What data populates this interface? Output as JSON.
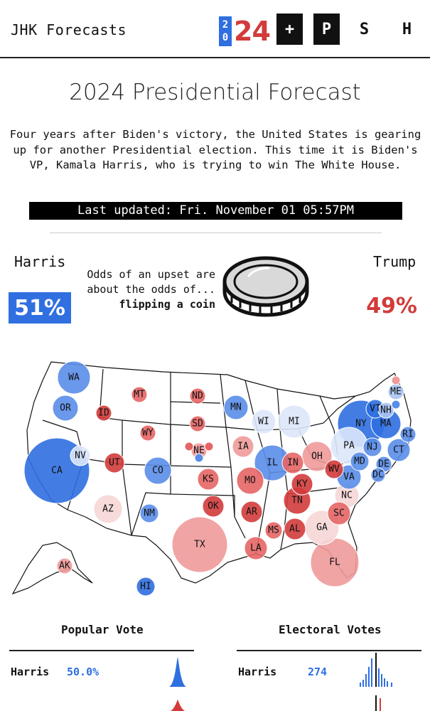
{
  "header": {
    "brand": "JHK Forecasts",
    "year_digits": [
      "2",
      "0"
    ],
    "year_suffix": "24",
    "nav": [
      "+",
      "P",
      "S",
      "H"
    ]
  },
  "title": "2024 Presidential Forecast",
  "intro": "Four years after Biden's victory, the United States is gearing up for another Presidential election. This time it is Biden's VP, Kamala Harris, who is trying to win The White House.",
  "last_updated": "Last updated: Fri. November 01 05:57PM",
  "odds": {
    "harris_name": "Harris",
    "harris_pct": "51%",
    "trump_name": "Trump",
    "trump_pct": "49%",
    "text_line1": "Odds of an upset are",
    "text_line2": "about the odds of...",
    "text_line3": "flipping a coin",
    "image": "coin-icon"
  },
  "colors": {
    "dem_strong": "#2f6fe0",
    "dem_lean": "#5a8de8",
    "dem_tilt": "#a8c4f2",
    "tossup_dem": "#dde7f9",
    "tossup_rep": "#f6d6d6",
    "rep_tilt": "#ef9a9a",
    "rep_lean": "#e56565",
    "rep_strong": "#d23b3b"
  },
  "states": [
    {
      "abbr": "WA",
      "color": "dem_lean"
    },
    {
      "abbr": "OR",
      "color": "dem_lean"
    },
    {
      "abbr": "CA",
      "color": "dem_strong"
    },
    {
      "abbr": "NV",
      "color": "tossup_dem"
    },
    {
      "abbr": "ID",
      "color": "rep_strong"
    },
    {
      "abbr": "MT",
      "color": "rep_lean"
    },
    {
      "abbr": "WY",
      "color": "rep_lean"
    },
    {
      "abbr": "UT",
      "color": "rep_strong"
    },
    {
      "abbr": "AZ",
      "color": "tossup_rep"
    },
    {
      "abbr": "CO",
      "color": "dem_lean"
    },
    {
      "abbr": "NM",
      "color": "dem_lean"
    },
    {
      "abbr": "ND",
      "color": "rep_lean"
    },
    {
      "abbr": "SD",
      "color": "rep_lean"
    },
    {
      "abbr": "NE",
      "color": "rep_tilt"
    },
    {
      "abbr": "KS",
      "color": "rep_lean"
    },
    {
      "abbr": "OK",
      "color": "rep_strong"
    },
    {
      "abbr": "TX",
      "color": "rep_tilt"
    },
    {
      "abbr": "MN",
      "color": "dem_lean"
    },
    {
      "abbr": "IA",
      "color": "rep_tilt"
    },
    {
      "abbr": "MO",
      "color": "rep_lean"
    },
    {
      "abbr": "AR",
      "color": "rep_strong"
    },
    {
      "abbr": "LA",
      "color": "rep_lean"
    },
    {
      "abbr": "WI",
      "color": "tossup_dem"
    },
    {
      "abbr": "IL",
      "color": "dem_lean"
    },
    {
      "abbr": "MI",
      "color": "tossup_dem"
    },
    {
      "abbr": "IN",
      "color": "rep_lean"
    },
    {
      "abbr": "OH",
      "color": "rep_tilt"
    },
    {
      "abbr": "KY",
      "color": "rep_strong"
    },
    {
      "abbr": "TN",
      "color": "rep_strong"
    },
    {
      "abbr": "MS",
      "color": "rep_lean"
    },
    {
      "abbr": "AL",
      "color": "rep_strong"
    },
    {
      "abbr": "GA",
      "color": "tossup_rep"
    },
    {
      "abbr": "FL",
      "color": "rep_tilt"
    },
    {
      "abbr": "SC",
      "color": "rep_lean"
    },
    {
      "abbr": "NC",
      "color": "tossup_rep"
    },
    {
      "abbr": "VA",
      "color": "dem_lean"
    },
    {
      "abbr": "WV",
      "color": "rep_strong"
    },
    {
      "abbr": "PA",
      "color": "tossup_dem"
    },
    {
      "abbr": "NY",
      "color": "dem_strong"
    },
    {
      "abbr": "MD",
      "color": "dem_lean"
    },
    {
      "abbr": "DE",
      "color": "dem_lean"
    },
    {
      "abbr": "DC",
      "color": "dem_lean"
    },
    {
      "abbr": "NJ",
      "color": "dem_lean"
    },
    {
      "abbr": "CT",
      "color": "dem_lean"
    },
    {
      "abbr": "RI",
      "color": "dem_lean"
    },
    {
      "abbr": "MA",
      "color": "dem_strong"
    },
    {
      "abbr": "VT",
      "color": "dem_strong"
    },
    {
      "abbr": "NH",
      "color": "dem_tilt"
    },
    {
      "abbr": "ME",
      "color": "dem_tilt"
    },
    {
      "abbr": "AK",
      "color": "rep_tilt"
    },
    {
      "abbr": "HI",
      "color": "dem_strong"
    }
  ],
  "popular_vote": {
    "title": "Popular Vote",
    "harris_label": "Harris",
    "harris_value": "50.0%"
  },
  "electoral_votes": {
    "title": "Electoral Votes",
    "harris_label": "Harris",
    "harris_value": "274"
  }
}
